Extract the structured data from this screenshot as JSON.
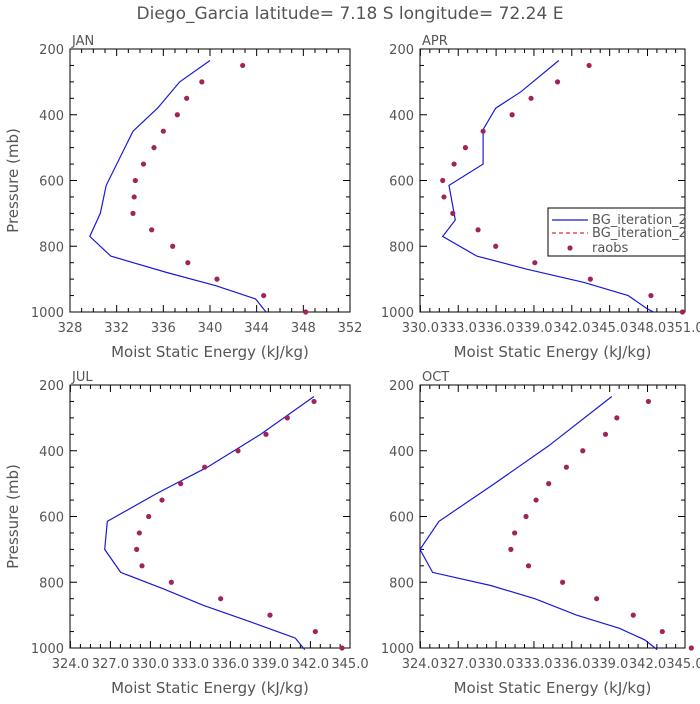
{
  "figure": {
    "title": "Diego_Garcia   latitude= 7.18 S longitude= 72.24 E"
  },
  "legend": {
    "items": [
      {
        "label": "BG_iteration_2",
        "kind": "line",
        "color": "#1a1ad6",
        "dash": "solid"
      },
      {
        "label": "BG_iteration_2",
        "kind": "line",
        "color": "#e03030",
        "dash": "dashed"
      },
      {
        "label": "raobs",
        "kind": "marker",
        "color": "#a0245a"
      }
    ]
  },
  "chart_data": [
    {
      "type": "line",
      "panel": "JAN",
      "xlabel": "Moist Static Energy (kJ/kg)",
      "ylabel": "Pressure (mb)",
      "xlim": [
        328,
        352
      ],
      "ylim": [
        1000,
        200
      ],
      "xticks": [
        328,
        332,
        336,
        340,
        344,
        348,
        352
      ],
      "xticklabels": [
        "328",
        "332",
        "336",
        "340",
        "344",
        "348",
        "352"
      ],
      "yticks": [
        200,
        400,
        600,
        800,
        1000
      ],
      "yticklabels": [
        "200",
        "400",
        "600",
        "800",
        "1000"
      ],
      "series": [
        {
          "name": "BG_iteration_2",
          "style": "line",
          "color": "#1a1ad6",
          "points": [
            [
              340.0,
              235
            ],
            [
              337.4,
              300
            ],
            [
              335.5,
              380
            ],
            [
              333.4,
              450
            ],
            [
              331.1,
              615
            ],
            [
              330.6,
              700
            ],
            [
              329.7,
              770
            ],
            [
              331.5,
              830
            ],
            [
              336.3,
              880
            ],
            [
              340.5,
              920
            ],
            [
              343.9,
              960
            ],
            [
              344.8,
              1000
            ]
          ]
        },
        {
          "name": "raobs",
          "style": "marker",
          "color": "#a0245a",
          "points": [
            [
              342.8,
              250
            ],
            [
              339.3,
              300
            ],
            [
              338.0,
              350
            ],
            [
              337.2,
              400
            ],
            [
              336.0,
              450
            ],
            [
              335.2,
              500
            ],
            [
              334.3,
              550
            ],
            [
              333.6,
              600
            ],
            [
              333.5,
              650
            ],
            [
              333.4,
              700
            ],
            [
              335.0,
              750
            ],
            [
              336.8,
              800
            ],
            [
              338.1,
              850
            ],
            [
              340.6,
              900
            ],
            [
              344.6,
              950
            ],
            [
              348.2,
              1000
            ]
          ]
        }
      ]
    },
    {
      "type": "line",
      "panel": "APR",
      "xlabel": "Moist Static Energy (kJ/kg)",
      "ylabel": "",
      "xlim": [
        330.0,
        351.0
      ],
      "ylim": [
        1000,
        200
      ],
      "xticks": [
        330.03,
        333.03,
        336.03,
        339.03,
        342.03,
        345.03,
        348.03,
        351.0
      ],
      "xticklabels": [
        "330.0",
        "333.0",
        "336.0",
        "339.0",
        "342.0",
        "345.0",
        "348.0",
        "351.0"
      ],
      "yticks": [
        200,
        400,
        600,
        800,
        1000
      ],
      "yticklabels": [
        "200",
        "400",
        "600",
        "800",
        "1000"
      ],
      "series": [
        {
          "name": "BG_iteration_2",
          "style": "line",
          "color": "#1a1ad6",
          "points": [
            [
              341.0,
              235
            ],
            [
              338.0,
              330
            ],
            [
              336.0,
              380
            ],
            [
              335.0,
              445
            ],
            [
              335.0,
              550
            ],
            [
              332.3,
              615
            ],
            [
              332.8,
              720
            ],
            [
              331.8,
              770
            ],
            [
              334.5,
              830
            ],
            [
              338.5,
              870
            ],
            [
              343.0,
              910
            ],
            [
              346.5,
              950
            ],
            [
              348.0,
              990
            ],
            [
              348.5,
              1000
            ]
          ]
        },
        {
          "name": "raobs",
          "style": "marker",
          "color": "#a0245a",
          "points": [
            [
              343.4,
              250
            ],
            [
              340.9,
              300
            ],
            [
              338.8,
              350
            ],
            [
              337.3,
              400
            ],
            [
              335.0,
              450
            ],
            [
              333.6,
              500
            ],
            [
              332.7,
              550
            ],
            [
              331.8,
              600
            ],
            [
              331.9,
              650
            ],
            [
              332.6,
              700
            ],
            [
              334.6,
              750
            ],
            [
              336.0,
              800
            ],
            [
              339.1,
              850
            ],
            [
              343.5,
              900
            ],
            [
              348.3,
              950
            ],
            [
              350.8,
              1000
            ]
          ]
        }
      ]
    },
    {
      "type": "line",
      "panel": "JUL",
      "xlabel": "Moist Static Energy (kJ/kg)",
      "ylabel": "Pressure (mb)",
      "xlim": [
        324.0,
        345.0
      ],
      "ylim": [
        1000,
        200
      ],
      "xticks": [
        324.03,
        327.03,
        330.03,
        333.03,
        336.03,
        339.03,
        342.03,
        345.0
      ],
      "xticklabels": [
        "324.0",
        "327.0",
        "330.0",
        "333.0",
        "336.0",
        "339.0",
        "342.0",
        "345.0"
      ],
      "yticks": [
        200,
        400,
        600,
        800,
        1000
      ],
      "yticklabels": [
        "200",
        "400",
        "600",
        "800",
        "1000"
      ],
      "series": [
        {
          "name": "BG_iteration_2",
          "style": "line",
          "color": "#1a1ad6",
          "points": [
            [
              342.3,
              235
            ],
            [
              338.3,
              350
            ],
            [
              334.3,
              450
            ],
            [
              330.5,
              530
            ],
            [
              326.8,
              615
            ],
            [
              326.6,
              700
            ],
            [
              327.8,
              770
            ],
            [
              331.0,
              820
            ],
            [
              334.0,
              870
            ],
            [
              337.5,
              920
            ],
            [
              340.9,
              970
            ],
            [
              341.6,
              1005
            ]
          ]
        },
        {
          "name": "raobs",
          "style": "marker",
          "color": "#a0245a",
          "points": [
            [
              342.3,
              250
            ],
            [
              340.3,
              300
            ],
            [
              338.7,
              350
            ],
            [
              336.6,
              400
            ],
            [
              334.1,
              450
            ],
            [
              332.3,
              500
            ],
            [
              330.9,
              550
            ],
            [
              329.9,
              600
            ],
            [
              329.2,
              650
            ],
            [
              329.0,
              700
            ],
            [
              329.4,
              750
            ],
            [
              331.6,
              800
            ],
            [
              335.3,
              850
            ],
            [
              339.0,
              900
            ],
            [
              342.4,
              950
            ],
            [
              344.4,
              1000
            ]
          ]
        }
      ]
    },
    {
      "type": "line",
      "panel": "OCT",
      "xlabel": "Moist Static Energy (kJ/kg)",
      "ylabel": "",
      "xlim": [
        324.0,
        345.0
      ],
      "ylim": [
        1000,
        200
      ],
      "xticks": [
        324.03,
        327.03,
        330.03,
        333.03,
        336.03,
        339.03,
        342.03,
        345.0
      ],
      "xticklabels": [
        "324.0",
        "327.0",
        "330.0",
        "333.0",
        "336.0",
        "339.0",
        "342.0",
        "345.0"
      ],
      "yticks": [
        200,
        400,
        600,
        800,
        1000
      ],
      "yticklabels": [
        "200",
        "400",
        "600",
        "800",
        "1000"
      ],
      "series": [
        {
          "name": "BG_iteration_2",
          "style": "line",
          "color": "#1a1ad6",
          "points": [
            [
              339.2,
              235
            ],
            [
              334.2,
              385
            ],
            [
              329.9,
              500
            ],
            [
              325.5,
              615
            ],
            [
              324.0,
              700
            ],
            [
              325.0,
              770
            ],
            [
              329.6,
              810
            ],
            [
              333.1,
              850
            ],
            [
              336.4,
              900
            ],
            [
              339.8,
              940
            ],
            [
              341.8,
              975
            ],
            [
              342.8,
              1005
            ]
          ]
        },
        {
          "name": "raobs",
          "style": "marker",
          "color": "#a0245a",
          "points": [
            [
              342.1,
              250
            ],
            [
              339.6,
              300
            ],
            [
              338.7,
              350
            ],
            [
              336.9,
              400
            ],
            [
              335.6,
              450
            ],
            [
              334.2,
              500
            ],
            [
              333.2,
              550
            ],
            [
              332.4,
              600
            ],
            [
              331.5,
              650
            ],
            [
              331.2,
              700
            ],
            [
              332.6,
              750
            ],
            [
              335.3,
              800
            ],
            [
              338.0,
              850
            ],
            [
              340.9,
              900
            ],
            [
              343.2,
              950
            ],
            [
              345.5,
              1000
            ]
          ]
        }
      ]
    }
  ]
}
